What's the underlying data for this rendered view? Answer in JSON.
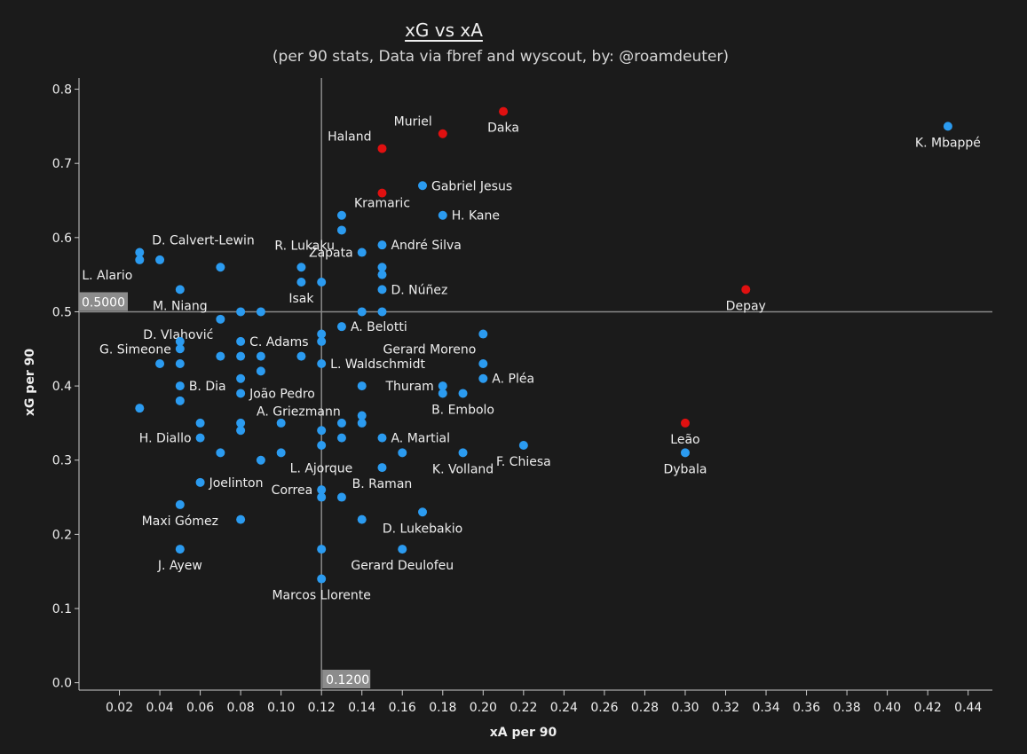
{
  "title": "xG vs xA",
  "subtitle": "(per 90 stats, Data via fbref and wyscout, by: @roamdeuter)",
  "colors": {
    "background": "#1b1b1b",
    "point": "#2b9bf0",
    "highlight": "#e01010",
    "axis": "#cccccc",
    "refline": "#8a8a8a",
    "text": "#eeeeee"
  },
  "chart_data": {
    "type": "scatter",
    "xlabel": "xA per 90",
    "ylabel": "xG per 90",
    "xlim": [
      0.0,
      0.452
    ],
    "ylim": [
      -0.01,
      0.815
    ],
    "xticks": [
      "0.02",
      "0.04",
      "0.06",
      "0.08",
      "0.10",
      "0.12",
      "0.14",
      "0.16",
      "0.18",
      "0.20",
      "0.22",
      "0.24",
      "0.26",
      "0.28",
      "0.30",
      "0.32",
      "0.34",
      "0.36",
      "0.38",
      "0.40",
      "0.42",
      "0.44"
    ],
    "yticks": [
      "0.0",
      "0.1",
      "0.2",
      "0.3",
      "0.4",
      "0.5",
      "0.6",
      "0.7",
      "0.8"
    ],
    "reference_lines": [
      {
        "axis": "x",
        "value": 0.12,
        "label": "0.1200"
      },
      {
        "axis": "y",
        "value": 0.5,
        "label": "0.5000"
      }
    ],
    "points": [
      {
        "x": 0.43,
        "y": 0.75,
        "label": "K. Mbappé",
        "lpos": "below"
      },
      {
        "x": 0.21,
        "y": 0.77,
        "label": "Daka",
        "lpos": "below",
        "highlight": true
      },
      {
        "x": 0.18,
        "y": 0.74,
        "label": "Muriel",
        "lpos": "aboveleft",
        "highlight": true
      },
      {
        "x": 0.15,
        "y": 0.72,
        "label": "Haland",
        "lpos": "aboveleft",
        "highlight": true
      },
      {
        "x": 0.15,
        "y": 0.66,
        "label": "",
        "lpos": "none",
        "highlight": true
      },
      {
        "x": 0.17,
        "y": 0.67,
        "label": "Gabriel Jesus",
        "lpos": "right"
      },
      {
        "x": 0.13,
        "y": 0.63,
        "label": "Kramaric",
        "lpos": "aboveright"
      },
      {
        "x": 0.18,
        "y": 0.63,
        "label": "H. Kane",
        "lpos": "right"
      },
      {
        "x": 0.13,
        "y": 0.61,
        "label": "R. Lukaku",
        "lpos": "belowleft"
      },
      {
        "x": 0.15,
        "y": 0.59,
        "label": "André Silva",
        "lpos": "right"
      },
      {
        "x": 0.14,
        "y": 0.58,
        "label": "Zapata",
        "lpos": "left"
      },
      {
        "x": 0.03,
        "y": 0.58,
        "label": "D. Calvert-Lewin",
        "lpos": "aboveright"
      },
      {
        "x": 0.03,
        "y": 0.57,
        "label": "L. Alario",
        "lpos": "belowleft"
      },
      {
        "x": 0.04,
        "y": 0.57,
        "label": "",
        "lpos": "none"
      },
      {
        "x": 0.07,
        "y": 0.56,
        "label": "",
        "lpos": "none"
      },
      {
        "x": 0.11,
        "y": 0.56,
        "label": "",
        "lpos": "none"
      },
      {
        "x": 0.15,
        "y": 0.56,
        "label": "",
        "lpos": "none"
      },
      {
        "x": 0.15,
        "y": 0.55,
        "label": "",
        "lpos": "none"
      },
      {
        "x": 0.11,
        "y": 0.54,
        "label": "Isak",
        "lpos": "below"
      },
      {
        "x": 0.12,
        "y": 0.54,
        "label": "",
        "lpos": "none"
      },
      {
        "x": 0.15,
        "y": 0.53,
        "label": "D. Núñez",
        "lpos": "right"
      },
      {
        "x": 0.05,
        "y": 0.53,
        "label": "M. Niang",
        "lpos": "below"
      },
      {
        "x": 0.33,
        "y": 0.53,
        "label": "Depay",
        "lpos": "below",
        "highlight": true
      },
      {
        "x": 0.07,
        "y": 0.49,
        "label": "D. Vlahović",
        "lpos": "belowleft"
      },
      {
        "x": 0.08,
        "y": 0.5,
        "label": "",
        "lpos": "none"
      },
      {
        "x": 0.09,
        "y": 0.5,
        "label": "",
        "lpos": "none"
      },
      {
        "x": 0.14,
        "y": 0.5,
        "label": "",
        "lpos": "none"
      },
      {
        "x": 0.15,
        "y": 0.5,
        "label": "",
        "lpos": "none"
      },
      {
        "x": 0.13,
        "y": 0.48,
        "label": "A. Belotti",
        "lpos": "right"
      },
      {
        "x": 0.12,
        "y": 0.47,
        "label": "",
        "lpos": "none"
      },
      {
        "x": 0.2,
        "y": 0.47,
        "label": "Gerard Moreno",
        "lpos": "belowleft"
      },
      {
        "x": 0.12,
        "y": 0.46,
        "label": "",
        "lpos": "none"
      },
      {
        "x": 0.08,
        "y": 0.46,
        "label": "C. Adams",
        "lpos": "right"
      },
      {
        "x": 0.05,
        "y": 0.46,
        "label": "",
        "lpos": "none"
      },
      {
        "x": 0.05,
        "y": 0.45,
        "label": "G. Simeone",
        "lpos": "left"
      },
      {
        "x": 0.07,
        "y": 0.44,
        "label": "",
        "lpos": "none"
      },
      {
        "x": 0.08,
        "y": 0.44,
        "label": "",
        "lpos": "none"
      },
      {
        "x": 0.09,
        "y": 0.44,
        "label": "",
        "lpos": "none"
      },
      {
        "x": 0.11,
        "y": 0.44,
        "label": "",
        "lpos": "none"
      },
      {
        "x": 0.04,
        "y": 0.43,
        "label": "",
        "lpos": "none"
      },
      {
        "x": 0.05,
        "y": 0.43,
        "label": "",
        "lpos": "none"
      },
      {
        "x": 0.12,
        "y": 0.43,
        "label": "L. Waldschmidt",
        "lpos": "right"
      },
      {
        "x": 0.2,
        "y": 0.43,
        "label": "",
        "lpos": "none"
      },
      {
        "x": 0.09,
        "y": 0.42,
        "label": "",
        "lpos": "none"
      },
      {
        "x": 0.08,
        "y": 0.41,
        "label": "João Pedro",
        "lpos": "belowright"
      },
      {
        "x": 0.2,
        "y": 0.41,
        "label": "A. Pléa",
        "lpos": "right"
      },
      {
        "x": 0.05,
        "y": 0.4,
        "label": "B. Dia",
        "lpos": "right"
      },
      {
        "x": 0.14,
        "y": 0.4,
        "label": "",
        "lpos": "none"
      },
      {
        "x": 0.18,
        "y": 0.4,
        "label": "Thuram",
        "lpos": "left"
      },
      {
        "x": 0.18,
        "y": 0.39,
        "label": "",
        "lpos": "none"
      },
      {
        "x": 0.19,
        "y": 0.39,
        "label": "B. Embolo",
        "lpos": "below"
      },
      {
        "x": 0.08,
        "y": 0.39,
        "label": "",
        "lpos": "none"
      },
      {
        "x": 0.05,
        "y": 0.38,
        "label": "",
        "lpos": "none"
      },
      {
        "x": 0.03,
        "y": 0.37,
        "label": "",
        "lpos": "none"
      },
      {
        "x": 0.14,
        "y": 0.36,
        "label": "A. Griezmann",
        "lpos": "farleft"
      },
      {
        "x": 0.06,
        "y": 0.35,
        "label": "",
        "lpos": "none"
      },
      {
        "x": 0.08,
        "y": 0.35,
        "label": "",
        "lpos": "none"
      },
      {
        "x": 0.1,
        "y": 0.35,
        "label": "",
        "lpos": "none"
      },
      {
        "x": 0.13,
        "y": 0.35,
        "label": "",
        "lpos": "none"
      },
      {
        "x": 0.14,
        "y": 0.35,
        "label": "",
        "lpos": "none"
      },
      {
        "x": 0.3,
        "y": 0.35,
        "label": "Leão",
        "lpos": "below",
        "highlight": true
      },
      {
        "x": 0.08,
        "y": 0.34,
        "label": "",
        "lpos": "none"
      },
      {
        "x": 0.12,
        "y": 0.34,
        "label": "",
        "lpos": "none"
      },
      {
        "x": 0.06,
        "y": 0.33,
        "label": "H. Diallo",
        "lpos": "left"
      },
      {
        "x": 0.13,
        "y": 0.33,
        "label": "",
        "lpos": "none"
      },
      {
        "x": 0.15,
        "y": 0.33,
        "label": "A. Martial",
        "lpos": "right"
      },
      {
        "x": 0.12,
        "y": 0.32,
        "label": "",
        "lpos": "none"
      },
      {
        "x": 0.22,
        "y": 0.32,
        "label": "F. Chiesa",
        "lpos": "below"
      },
      {
        "x": 0.07,
        "y": 0.31,
        "label": "",
        "lpos": "none"
      },
      {
        "x": 0.1,
        "y": 0.31,
        "label": "L. Ajorque",
        "lpos": "belowright"
      },
      {
        "x": 0.16,
        "y": 0.31,
        "label": "",
        "lpos": "none"
      },
      {
        "x": 0.19,
        "y": 0.31,
        "label": "K. Volland",
        "lpos": "below"
      },
      {
        "x": 0.3,
        "y": 0.31,
        "label": "Dybala",
        "lpos": "below"
      },
      {
        "x": 0.09,
        "y": 0.3,
        "label": "",
        "lpos": "none"
      },
      {
        "x": 0.15,
        "y": 0.29,
        "label": "B. Raman",
        "lpos": "below"
      },
      {
        "x": 0.06,
        "y": 0.27,
        "label": "Joelinton",
        "lpos": "right"
      },
      {
        "x": 0.12,
        "y": 0.26,
        "label": "Correa",
        "lpos": "left"
      },
      {
        "x": 0.12,
        "y": 0.25,
        "label": "",
        "lpos": "none"
      },
      {
        "x": 0.13,
        "y": 0.25,
        "label": "",
        "lpos": "none"
      },
      {
        "x": 0.05,
        "y": 0.24,
        "label": "Maxi Gómez",
        "lpos": "below"
      },
      {
        "x": 0.17,
        "y": 0.23,
        "label": "D. Lukebakio",
        "lpos": "below"
      },
      {
        "x": 0.08,
        "y": 0.22,
        "label": "",
        "lpos": "none"
      },
      {
        "x": 0.14,
        "y": 0.22,
        "label": "",
        "lpos": "none"
      },
      {
        "x": 0.05,
        "y": 0.18,
        "label": "J. Ayew",
        "lpos": "below"
      },
      {
        "x": 0.12,
        "y": 0.18,
        "label": "",
        "lpos": "none"
      },
      {
        "x": 0.16,
        "y": 0.18,
        "label": "Gerard Deulofeu",
        "lpos": "below"
      },
      {
        "x": 0.12,
        "y": 0.14,
        "label": "Marcos Llorente",
        "lpos": "below"
      }
    ]
  }
}
